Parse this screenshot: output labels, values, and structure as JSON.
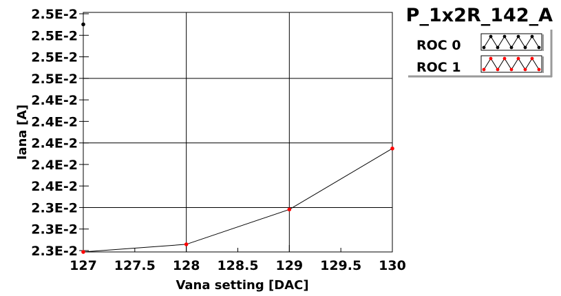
{
  "chart_data": {
    "type": "line",
    "title": "P_1x2R_142_A",
    "xlabel": "Vana setting [DAC]",
    "ylabel": "Iana [A]",
    "xlim": [
      127,
      130
    ],
    "ylim": [
      0.023,
      0.0252
    ],
    "x_ticks": [
      "127",
      "127.5",
      "128",
      "128.5",
      "129",
      "129.5",
      "130"
    ],
    "y_ticks": [
      "2.5E-2",
      "2.5E-2",
      "2.5E-2",
      "2.5E-2",
      "2.4E-2",
      "2.4E-2",
      "2.4E-2",
      "2.4E-2",
      "2.4E-2",
      "2.3E-2",
      "2.3E-2",
      "2.3E-2"
    ],
    "grid": true,
    "legend": "top-right",
    "series": [
      {
        "name": "ROC 0",
        "color": "#000000",
        "marker_color": "#000000",
        "x": [
          127
        ],
        "y": [
          0.02509
        ]
      },
      {
        "name": "ROC 1",
        "color": "#000000",
        "marker_color": "#ff0000",
        "x": [
          127,
          128,
          129,
          130
        ],
        "y": [
          0.023,
          0.02307,
          0.02339,
          0.02395
        ]
      }
    ]
  },
  "legend": {
    "title": "P_1x2R_142_A",
    "entries": [
      {
        "label": "ROC 0",
        "line_color": "#000000",
        "marker_color": "#000000"
      },
      {
        "label": "ROC 1",
        "line_color": "#000000",
        "marker_color": "#ff0000"
      }
    ]
  }
}
